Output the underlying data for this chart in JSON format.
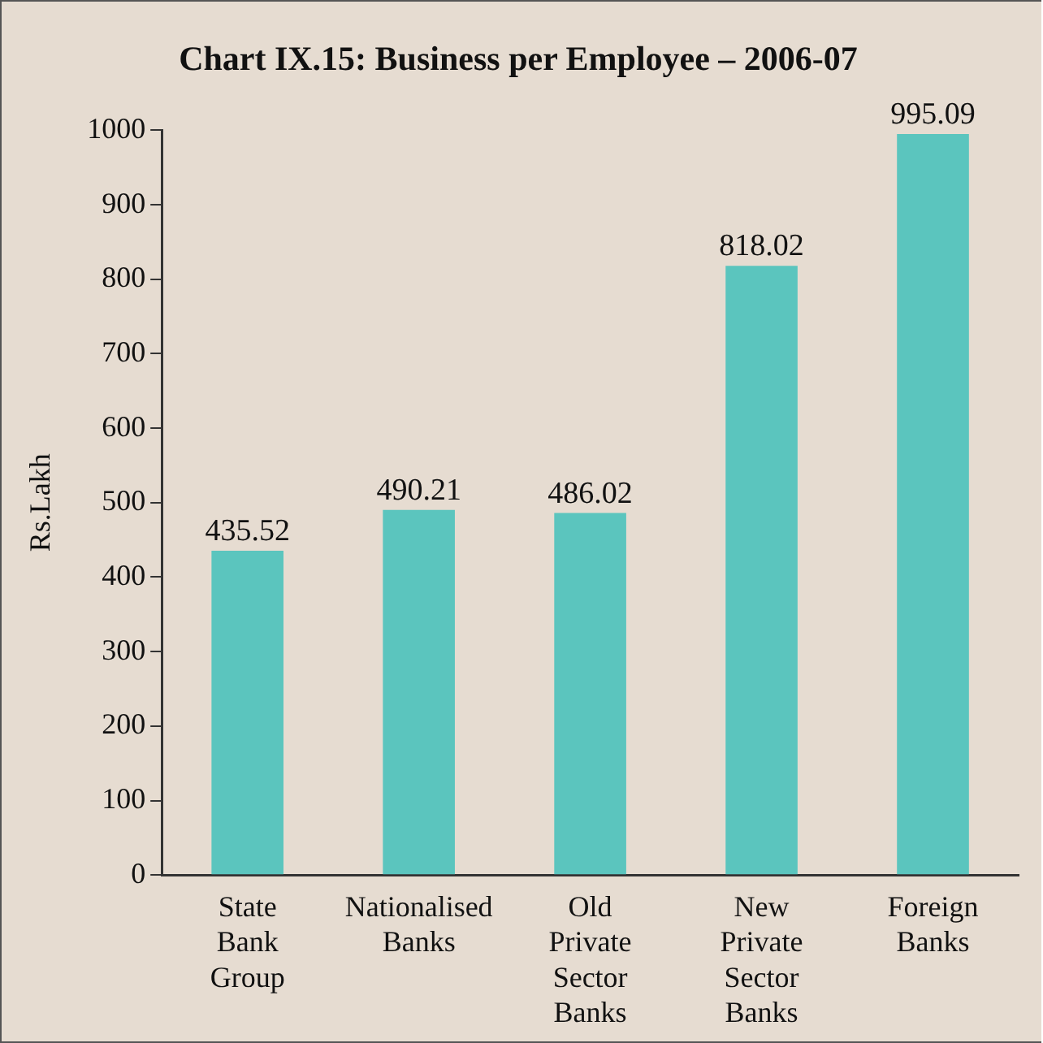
{
  "chart_data": {
    "type": "bar",
    "title": "Chart IX.15: Business per Employee – 2006-07",
    "ylabel": "Rs.Lakh",
    "categories": [
      "State Bank Group",
      "Nationalised Banks",
      "Old Private Sector Banks",
      "New Private Sector Banks",
      "Foreign Banks"
    ],
    "values": [
      435.52,
      490.21,
      486.02,
      818.02,
      995.09
    ],
    "color": "#5bc5be",
    "ylim": [
      0,
      1000
    ],
    "yticks": [
      0,
      100,
      200,
      300,
      400,
      500,
      600,
      700,
      800,
      900,
      1000
    ],
    "grid": false,
    "legend": false,
    "data_labels": true
  }
}
